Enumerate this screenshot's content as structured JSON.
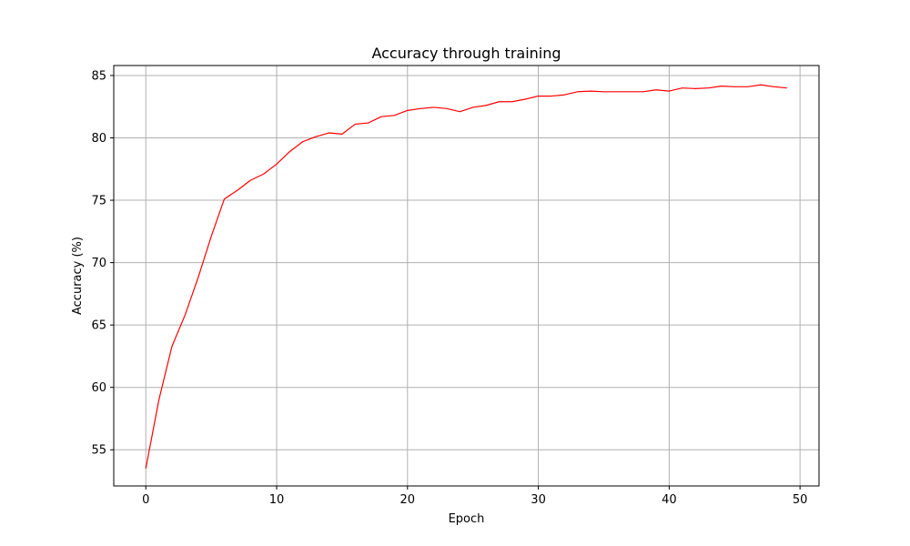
{
  "chart_data": {
    "type": "line",
    "title": "Accuracy through training",
    "xlabel": "Epoch",
    "ylabel": "Accuracy (%)",
    "xlim": [
      -2.45,
      51.45
    ],
    "ylim": [
      52.1,
      85.8
    ],
    "xticks": [
      0,
      10,
      20,
      30,
      40,
      50
    ],
    "yticks": [
      55,
      60,
      65,
      70,
      75,
      80,
      85
    ],
    "grid": true,
    "legend": "none",
    "series": [
      {
        "color": "#ff0000",
        "x": [
          0,
          1,
          2,
          3,
          4,
          5,
          6,
          7,
          8,
          9,
          10,
          11,
          12,
          13,
          14,
          15,
          16,
          17,
          18,
          19,
          20,
          21,
          22,
          23,
          24,
          25,
          26,
          27,
          28,
          29,
          30,
          31,
          32,
          33,
          34,
          35,
          36,
          37,
          38,
          39,
          40,
          41,
          42,
          43,
          44,
          45,
          46,
          47,
          48,
          49
        ],
        "y": [
          53.5,
          59.0,
          63.3,
          65.8,
          68.8,
          72.1,
          75.1,
          75.8,
          76.6,
          77.1,
          77.9,
          78.9,
          79.7,
          80.1,
          80.4,
          80.3,
          81.1,
          81.2,
          81.7,
          81.8,
          82.2,
          82.35,
          82.45,
          82.35,
          82.1,
          82.45,
          82.6,
          82.9,
          82.9,
          83.1,
          83.35,
          83.35,
          83.45,
          83.7,
          83.75,
          83.7,
          83.7,
          83.7,
          83.7,
          83.85,
          83.75,
          84.0,
          83.95,
          84.0,
          84.15,
          84.1,
          84.1,
          84.25,
          84.1,
          84.0
        ]
      }
    ]
  }
}
